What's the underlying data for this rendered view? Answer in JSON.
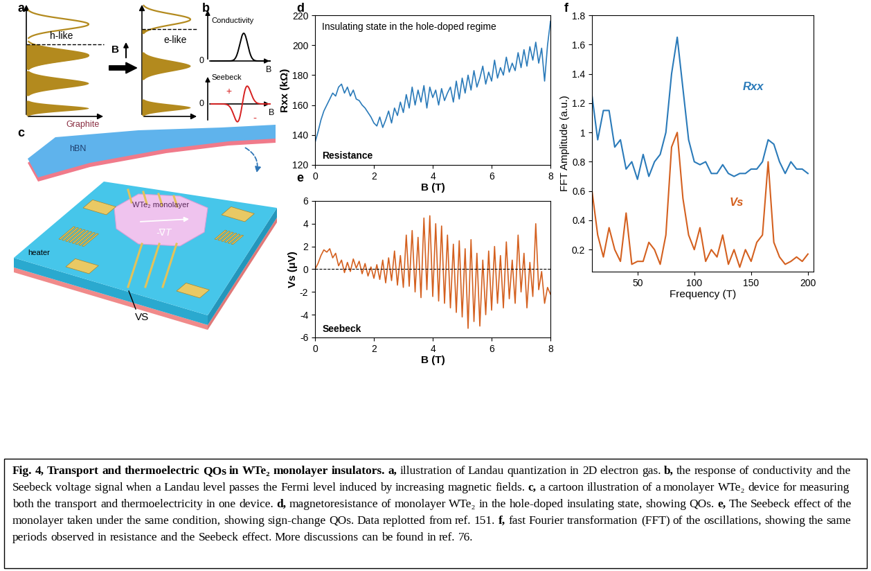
{
  "panel_labels": [
    "a",
    "b",
    "c",
    "d",
    "e",
    "f"
  ],
  "diagrams": {
    "a": {
      "left_label": "h-like",
      "right_label": "e-like",
      "field": "B"
    },
    "b": {
      "top_label": "Conductivity",
      "bottom_label": "Seebeck",
      "axis_label": "B",
      "origin": "0",
      "positive": "+",
      "negative": "-"
    },
    "c": {
      "layers": [
        "Graphite",
        "hBN"
      ],
      "flake": "WTe₂ monolayer",
      "heater": "heater",
      "gradient": "-∇T",
      "voltage": "VS"
    }
  },
  "chart_data": [
    {
      "type": "line",
      "x_label": "B (T)",
      "y_label": "Rxx (kΩ)",
      "annotations": [
        "Insulating state in the hole-doped regime",
        "Resistance"
      ],
      "color": "#2a7ab9",
      "x": [
        0,
        0.1,
        0.2,
        0.3,
        0.4,
        0.5,
        0.6,
        0.7,
        0.8,
        0.9,
        1,
        1.1,
        1.2,
        1.3,
        1.4,
        1.5,
        1.6,
        1.7,
        1.8,
        1.9,
        2,
        2.1,
        2.2,
        2.3,
        2.4,
        2.5,
        2.6,
        2.7,
        2.8,
        2.9,
        3,
        3.1,
        3.2,
        3.3,
        3.4,
        3.5,
        3.6,
        3.7,
        3.8,
        3.9,
        4,
        4.1,
        4.2,
        4.3,
        4.4,
        4.5,
        4.6,
        4.7,
        4.8,
        4.9,
        5,
        5.1,
        5.2,
        5.3,
        5.4,
        5.5,
        5.6,
        5.7,
        5.8,
        5.9,
        6,
        6.1,
        6.2,
        6.3,
        6.4,
        6.5,
        6.6,
        6.7,
        6.8,
        6.9,
        7,
        7.1,
        7.2,
        7.3,
        7.4,
        7.5,
        7.6,
        7.7,
        7.8,
        7.9,
        8
      ],
      "values": [
        135,
        142,
        150,
        156,
        160,
        164,
        168,
        166,
        172,
        174,
        168,
        172,
        166,
        170,
        164,
        163,
        160,
        158,
        155,
        152,
        148,
        146,
        152,
        145,
        150,
        156,
        148,
        158,
        153,
        162,
        155,
        167,
        158,
        172,
        160,
        170,
        162,
        173,
        158,
        172,
        165,
        170,
        160,
        171,
        163,
        168,
        172,
        162,
        176,
        164,
        178,
        168,
        180,
        170,
        183,
        172,
        178,
        186,
        174,
        182,
        176,
        190,
        178,
        185,
        180,
        192,
        182,
        188,
        183,
        195,
        185,
        197,
        186,
        199,
        190,
        202,
        188,
        198,
        176,
        200,
        216
      ],
      "xlim": [
        0,
        8
      ],
      "xticks": [
        0,
        2,
        4,
        6,
        8
      ],
      "ylim": [
        120,
        220
      ],
      "yticks": [
        120,
        140,
        160,
        180,
        200,
        220
      ]
    },
    {
      "type": "line",
      "x_label": "B (T)",
      "y_label": "Vs (μV)",
      "annotations": [
        "Seebeck"
      ],
      "color": "#d4601f",
      "reference_line": 0,
      "x": [
        0,
        0.1,
        0.2,
        0.3,
        0.4,
        0.5,
        0.6,
        0.7,
        0.8,
        0.9,
        1,
        1.1,
        1.2,
        1.3,
        1.4,
        1.5,
        1.6,
        1.7,
        1.8,
        1.9,
        2,
        2.1,
        2.2,
        2.3,
        2.4,
        2.5,
        2.6,
        2.7,
        2.8,
        2.9,
        3,
        3.1,
        3.2,
        3.3,
        3.4,
        3.5,
        3.6,
        3.7,
        3.8,
        3.9,
        4,
        4.1,
        4.2,
        4.3,
        4.4,
        4.5,
        4.6,
        4.7,
        4.8,
        4.9,
        5,
        5.1,
        5.2,
        5.3,
        5.4,
        5.5,
        5.6,
        5.7,
        5.8,
        5.9,
        6,
        6.1,
        6.2,
        6.3,
        6.4,
        6.5,
        6.6,
        6.7,
        6.8,
        6.9,
        7,
        7.1,
        7.2,
        7.3,
        7.4,
        7.5,
        7.6,
        7.7,
        7.8,
        7.9,
        8
      ],
      "values": [
        0,
        0.5,
        1.2,
        1.7,
        1.5,
        1.8,
        1.0,
        1.4,
        0.3,
        0.8,
        -0.3,
        0.6,
        -0.2,
        0.9,
        0.1,
        0.7,
        -0.4,
        0.5,
        -0.6,
        0.2,
        -0.8,
        0.4,
        -0.9,
        0.8,
        -1.2,
        1.0,
        -1.0,
        1.6,
        -1.4,
        1.2,
        -1.6,
        3.0,
        -1.5,
        3.4,
        -2.0,
        2.8,
        -2.5,
        4.5,
        -1.8,
        4.7,
        -2.4,
        4.0,
        -2.8,
        3.8,
        -3.0,
        3.0,
        -3.4,
        2.2,
        -3.8,
        2.5,
        -4.2,
        1.8,
        -5.2,
        2.6,
        -4.6,
        1.4,
        -5.0,
        0.8,
        -4.0,
        1.6,
        -3.6,
        2.0,
        -3.0,
        1.2,
        -3.4,
        2.4,
        -2.6,
        0.8,
        -3.0,
        3.0,
        -2.0,
        1.4,
        -3.4,
        0.6,
        -2.4,
        4.0,
        -1.8,
        -0.2,
        -3.0,
        -1.6,
        -2.2
      ],
      "xlim": [
        0,
        8
      ],
      "xticks": [
        0,
        2,
        4,
        6,
        8
      ],
      "ylim": [
        -6,
        6
      ],
      "yticks": [
        -6,
        -4,
        -2,
        0,
        2,
        4,
        6
      ]
    },
    {
      "type": "line",
      "x_label": "Frequency (T)",
      "y_label": "FFT Amplitude (a.u.)",
      "x": [
        10,
        15,
        20,
        25,
        30,
        35,
        40,
        45,
        50,
        55,
        60,
        65,
        70,
        75,
        80,
        85,
        90,
        95,
        100,
        105,
        110,
        115,
        120,
        125,
        130,
        135,
        140,
        145,
        150,
        155,
        160,
        165,
        170,
        175,
        180,
        185,
        190,
        195,
        200
      ],
      "series": [
        {
          "name": "Rxx",
          "color": "#2a7ab9",
          "values": [
            1.25,
            0.95,
            1.15,
            1.15,
            0.9,
            0.95,
            0.75,
            0.8,
            0.68,
            0.85,
            0.7,
            0.8,
            0.85,
            1.0,
            1.4,
            1.65,
            1.3,
            0.95,
            0.8,
            0.78,
            0.8,
            0.72,
            0.72,
            0.78,
            0.72,
            0.7,
            0.72,
            0.72,
            0.75,
            0.75,
            0.8,
            0.95,
            0.92,
            0.8,
            0.72,
            0.8,
            0.75,
            0.75,
            0.72
          ]
        },
        {
          "name": "Vs",
          "color": "#d4601f",
          "values": [
            0.6,
            0.3,
            0.15,
            0.35,
            0.2,
            0.12,
            0.45,
            0.1,
            0.12,
            0.12,
            0.25,
            0.2,
            0.1,
            0.3,
            0.9,
            1.0,
            0.55,
            0.3,
            0.2,
            0.35,
            0.12,
            0.2,
            0.15,
            0.3,
            0.1,
            0.2,
            0.08,
            0.2,
            0.12,
            0.25,
            0.3,
            0.8,
            0.25,
            0.15,
            0.1,
            0.12,
            0.15,
            0.12,
            0.17
          ]
        }
      ],
      "xlim": [
        10,
        205
      ],
      "xticks": [
        50,
        100,
        150,
        200
      ],
      "ylim": [
        0.05,
        1.8
      ],
      "yticks": [
        0.2,
        0.4,
        0.6,
        0.8,
        1,
        1.2,
        1.4,
        1.6,
        1.8
      ]
    }
  ],
  "caption": {
    "title": "Fig. 4, Transport and thermoelectric QOs in WTe₂ monolayer insulators.",
    "items": [
      {
        "label": "a,",
        "text": "illustration of Landau quantization in 2D electron gas."
      },
      {
        "label": "b,",
        "text": "the response of conductivity and the Seebeck voltage signal when a Landau level passes the Fermi level induced by increasing magnetic fields."
      },
      {
        "label": "c,",
        "text": "a cartoon illustration of a monolayer WTe₂ device for measuring both the transport and thermoelectricity in one device."
      },
      {
        "label": "d,",
        "text": "magnetoresistance of monolayer WTe₂ in the hole-doped insulating state, showing QOs."
      },
      {
        "label": "e,",
        "text": "The Seebeck effect of the monolayer taken under the same condition, showing sign-change QOs. Data replotted from ref. 151."
      },
      {
        "label": "f,",
        "text": "fast Fourier transformation (FFT) of the oscillations, showing the same periods observed in resistance and the Seebeck effect. More discussions can be found in ref. 76."
      }
    ]
  }
}
